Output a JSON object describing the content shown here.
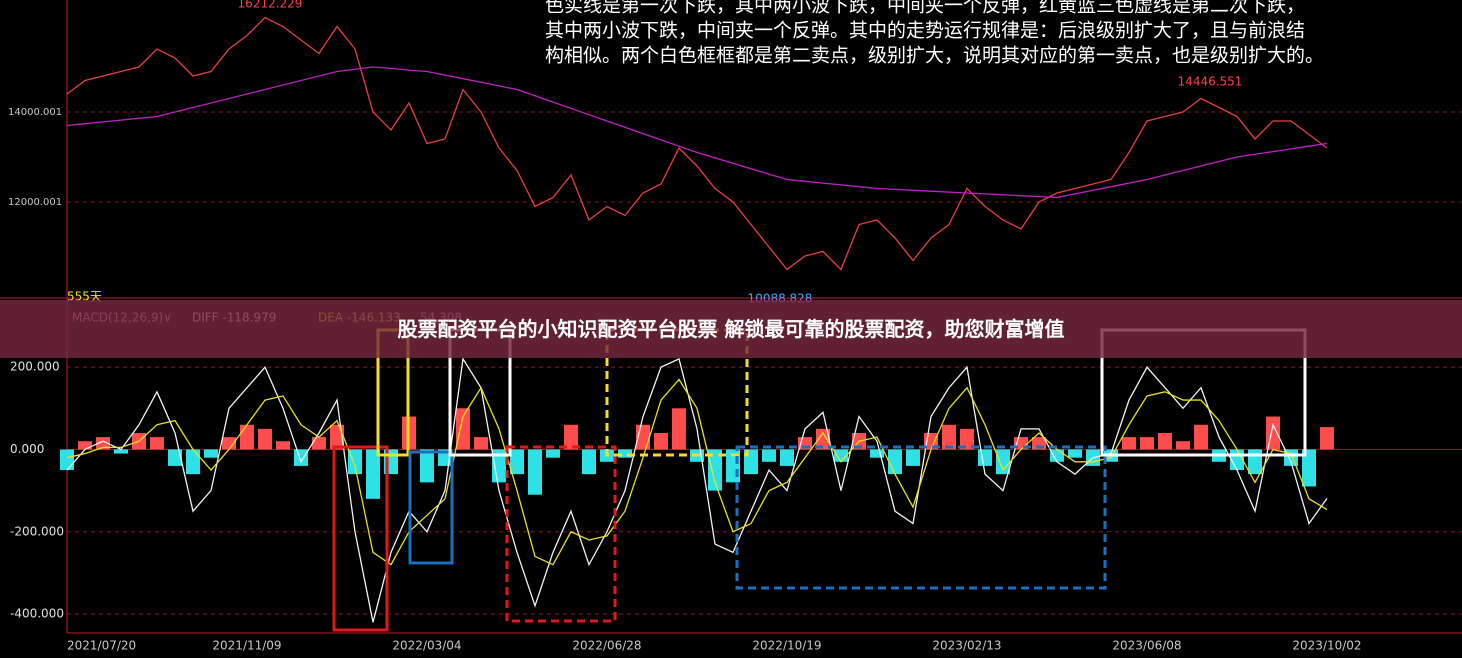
{
  "chart_data": [
    {
      "type": "line",
      "ylim": [
        9933,
        16489
      ],
      "yticks": [
        14000.001,
        12000.001
      ],
      "grid": true,
      "annotations": [
        "16212.229",
        "14446.551",
        "10088.828",
        "555天"
      ],
      "note": [
        "色实线是第一次下跌，其中两小波下跌，中间夹一个反弹，红黄蓝三色虚线是第二次下跌，",
        "其中两小波下跌，中间夹一个反弹。其中的走势运行规律是：后浪级别扩大了，且与前浪结",
        "构相似。两个白色框框都是第二卖点，级别扩大，说明其对应的第一卖点，也是级别扩大的。"
      ],
      "series": [
        {
          "color": "#e8403c",
          "values": [
            14400,
            14700,
            14800,
            14900,
            15000,
            15400,
            15200,
            14800,
            14900,
            15400,
            15700,
            16100,
            15900,
            15600,
            15300,
            15900,
            15400,
            14000,
            13600,
            14200,
            13300,
            13400,
            14500,
            14000,
            13200,
            12700,
            11900,
            12100,
            12600,
            11600,
            11900,
            11700,
            12200,
            12400,
            13200,
            12800,
            12300,
            12000,
            11500,
            11000,
            10500,
            10800,
            10900,
            10500,
            11500,
            11600,
            11200,
            10700,
            11200,
            11500,
            12300,
            11900,
            11600,
            11400,
            12000,
            12200,
            12300,
            12400,
            12500,
            13100,
            13800,
            13900,
            14000,
            14300,
            14100,
            13900,
            13400,
            13800,
            13800,
            13500,
            13200
          ]
        },
        {
          "color": "#c21fc8",
          "values": [
            13700,
            13740,
            13780,
            13820,
            13860,
            13900,
            14000,
            14100,
            14200,
            14300,
            14400,
            14500,
            14600,
            14700,
            14800,
            14900,
            14950,
            15000,
            14970,
            14930,
            14900,
            14820,
            14740,
            14660,
            14580,
            14500,
            14360,
            14220,
            14080,
            13940,
            13800,
            13660,
            13520,
            13380,
            13240,
            13100,
            12980,
            12860,
            12740,
            12620,
            12500,
            12460,
            12420,
            12380,
            12340,
            12300,
            12280,
            12260,
            12240,
            12220,
            12200,
            12180,
            12160,
            12140,
            12120,
            12100,
            12180,
            12260,
            12340,
            12420,
            12500,
            12600,
            12700,
            12800,
            12900,
            13000,
            13060,
            13120,
            13180,
            13240,
            13300
          ]
        }
      ]
    },
    {
      "type": "bar",
      "header": [
        "MACD(12,26,9)∨",
        "DIFF -118.979",
        "DEA -146.133",
        "54.308"
      ],
      "ylim": [
        -446,
        351
      ],
      "yticks": [
        {
          "value": 200,
          "label": "200.000"
        },
        {
          "value": 0,
          "label": "0.000"
        },
        {
          "value": -200,
          "label": "-200.000"
        },
        {
          "value": -400,
          "label": "-400.000"
        }
      ],
      "grid": true,
      "color_positive": "#ff4d4d",
      "color_negative": "#2de1e6",
      "categories": [
        "2021/07/20",
        null,
        null,
        null,
        null,
        null,
        null,
        null,
        null,
        null,
        "2021/11/09",
        null,
        null,
        null,
        null,
        null,
        null,
        null,
        null,
        null,
        "2022/03/04",
        null,
        null,
        null,
        null,
        null,
        null,
        null,
        null,
        null,
        "2022/06/28",
        null,
        null,
        null,
        null,
        null,
        null,
        null,
        null,
        null,
        "2022/10/19",
        null,
        null,
        null,
        null,
        null,
        null,
        null,
        null,
        null,
        "2023/02/13",
        null,
        null,
        null,
        null,
        null,
        null,
        null,
        null,
        null,
        "2023/06/08",
        null,
        null,
        null,
        null,
        null,
        null,
        null,
        null,
        null,
        "2023/10/02"
      ],
      "values": [
        -50,
        20,
        30,
        -10,
        40,
        30,
        -40,
        -60,
        -20,
        30,
        60,
        50,
        20,
        -40,
        30,
        60,
        -60,
        -120,
        -60,
        80,
        -80,
        -40,
        100,
        30,
        -80,
        -60,
        -110,
        -20,
        60,
        -60,
        -30,
        -20,
        60,
        40,
        100,
        -30,
        -100,
        -80,
        -60,
        -30,
        -40,
        30,
        50,
        -30,
        40,
        -20,
        -60,
        -40,
        40,
        60,
        50,
        -40,
        -60,
        30,
        30,
        -30,
        -20,
        -40,
        -30,
        30,
        30,
        40,
        20,
        60,
        -30,
        -50,
        -60,
        80,
        -40,
        -90,
        54.308
      ],
      "series": [
        {
          "name": "DIFF",
          "color": "#f2f2f2",
          "values": [
            -50,
            0,
            20,
            0,
            60,
            140,
            40,
            -150,
            -100,
            100,
            150,
            200,
            100,
            -30,
            40,
            120,
            -200,
            -420,
            -250,
            -150,
            -200,
            -100,
            220,
            150,
            -100,
            -250,
            -380,
            -250,
            -150,
            -280,
            -200,
            -100,
            80,
            200,
            220,
            50,
            -230,
            -250,
            -150,
            -50,
            -100,
            50,
            90,
            -100,
            80,
            20,
            -150,
            -180,
            80,
            150,
            200,
            -60,
            -100,
            50,
            50,
            -30,
            -60,
            -20,
            -10,
            120,
            200,
            150,
            100,
            150,
            30,
            -50,
            -150,
            60,
            -30,
            -180,
            -118.979
          ]
        },
        {
          "name": "DEA",
          "color": "#e8e020",
          "values": [
            -20,
            -10,
            5,
            5,
            20,
            60,
            70,
            0,
            -50,
            0,
            60,
            120,
            130,
            60,
            30,
            70,
            -40,
            -250,
            -280,
            -200,
            -160,
            -120,
            80,
            150,
            50,
            -100,
            -260,
            -280,
            -200,
            -220,
            -210,
            -150,
            -20,
            120,
            170,
            100,
            -80,
            -200,
            -180,
            -100,
            -80,
            -20,
            40,
            -30,
            20,
            30,
            -60,
            -140,
            0,
            100,
            150,
            60,
            -50,
            0,
            40,
            0,
            -30,
            -30,
            -20,
            60,
            130,
            140,
            120,
            120,
            70,
            0,
            -80,
            0,
            -10,
            -120,
            -146.133
          ]
        }
      ]
    }
  ],
  "banner": "股票配资平台的小知识配资平台股票 解锁最可靠的股票配资，助您财富增值"
}
